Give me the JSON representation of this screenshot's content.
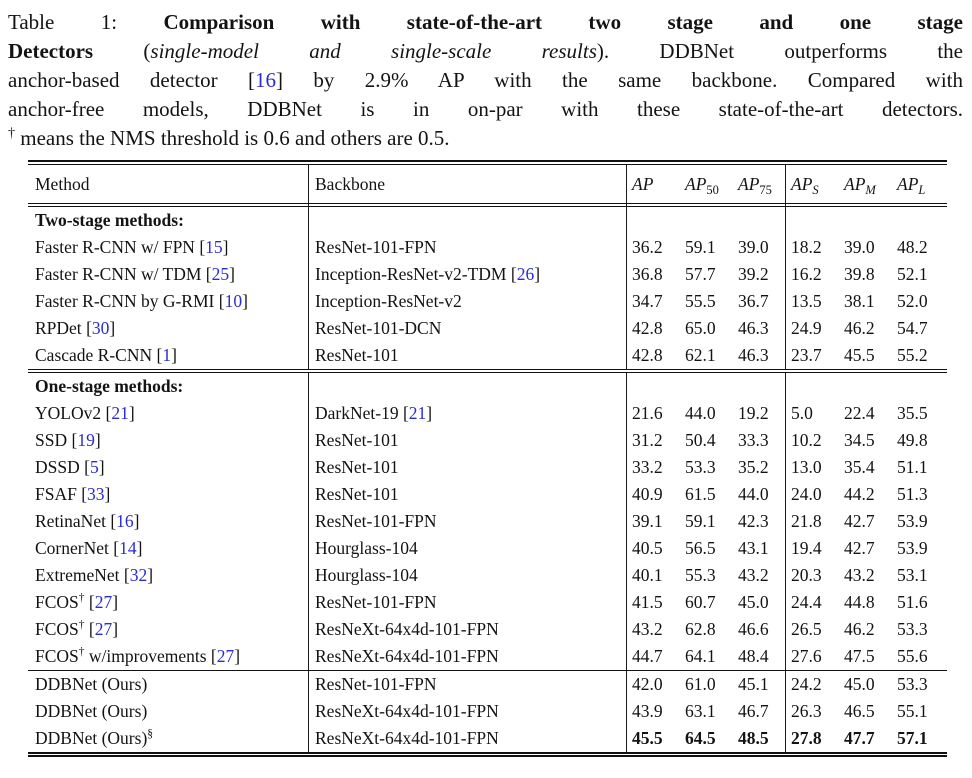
{
  "colors": {
    "citation": "#2b2bd4",
    "text": "#131313",
    "rule": "#111111"
  },
  "caption": {
    "lines": [
      {
        "justify": true,
        "segments": [
          {
            "text": "Table 1: ",
            "style": "roman"
          },
          {
            "text": "Comparison with state-of-the-art two stage and one stage",
            "style": "bold"
          }
        ]
      },
      {
        "justify": true,
        "segments": [
          {
            "text": "Detectors ",
            "style": "bold"
          },
          {
            "text": "(",
            "style": "roman"
          },
          {
            "text": "single-model and single-scale results",
            "style": "italic"
          },
          {
            "text": "). DDBNet outperforms the",
            "style": "roman"
          }
        ]
      },
      {
        "justify": true,
        "segments": [
          {
            "text": "anchor-based detector ",
            "style": "roman"
          },
          {
            "text": "[",
            "style": "roman"
          },
          {
            "text": "16",
            "style": "cite"
          },
          {
            "text": "]",
            "style": "roman"
          },
          {
            "text": " by 2.9% AP with the same backbone. Compared with",
            "style": "roman"
          }
        ]
      },
      {
        "justify": true,
        "segments": [
          {
            "text": "anchor-free models, DDBNet is in on-par with these state-of-the-art detectors.",
            "style": "roman"
          }
        ]
      },
      {
        "justify": false,
        "segments": [
          {
            "text": "†",
            "style": "sup"
          },
          {
            "text": " means the NMS threshold is 0.6 and others are 0.5.",
            "style": "roman"
          }
        ]
      }
    ]
  },
  "table": {
    "header": {
      "method": "Method",
      "backbone": "Backbone",
      "metrics": [
        {
          "base": "AP",
          "sub": "",
          "subStyle": ""
        },
        {
          "base": "AP",
          "sub": "50",
          "subStyle": "digit"
        },
        {
          "base": "AP",
          "sub": "75",
          "subStyle": "digit"
        },
        {
          "base": "AP",
          "sub": "S",
          "subStyle": "letter"
        },
        {
          "base": "AP",
          "sub": "M",
          "subStyle": "letter"
        },
        {
          "base": "AP",
          "sub": "L",
          "subStyle": "letter"
        }
      ]
    },
    "sections": [
      {
        "label": "Two-stage methods:",
        "divider_after": "double",
        "rows": [
          {
            "method": {
              "pre": "Faster R-CNN w/ FPN",
              "sup": "",
              "post": "",
              "cite": "15"
            },
            "backbone": {
              "name": "ResNet-101-FPN",
              "cite": ""
            },
            "values": [
              "36.2",
              "59.1",
              "39.0",
              "18.2",
              "39.0",
              "48.2"
            ],
            "bold": false
          },
          {
            "method": {
              "pre": "Faster R-CNN w/ TDM",
              "sup": "",
              "post": "",
              "cite": "25"
            },
            "backbone": {
              "name": "Inception-ResNet-v2-TDM",
              "cite": "26"
            },
            "values": [
              "36.8",
              "57.7",
              "39.2",
              "16.2",
              "39.8",
              "52.1"
            ],
            "bold": false
          },
          {
            "method": {
              "pre": "Faster R-CNN by G-RMI",
              "sup": "",
              "post": "",
              "cite": "10"
            },
            "backbone": {
              "name": "Inception-ResNet-v2",
              "cite": ""
            },
            "values": [
              "34.7",
              "55.5",
              "36.7",
              "13.5",
              "38.1",
              "52.0"
            ],
            "bold": false
          },
          {
            "method": {
              "pre": "RPDet",
              "sup": "",
              "post": "",
              "cite": "30"
            },
            "backbone": {
              "name": "ResNet-101-DCN",
              "cite": ""
            },
            "values": [
              "42.8",
              "65.0",
              "46.3",
              "24.9",
              "46.2",
              "54.7"
            ],
            "bold": false
          },
          {
            "method": {
              "pre": "Cascade R-CNN",
              "sup": "",
              "post": "",
              "cite": "1"
            },
            "backbone": {
              "name": "ResNet-101",
              "cite": ""
            },
            "values": [
              "42.8",
              "62.1",
              "46.3",
              "23.7",
              "45.5",
              "55.2"
            ],
            "bold": false
          }
        ]
      },
      {
        "label": "One-stage methods:",
        "divider_after": "single",
        "rows": [
          {
            "method": {
              "pre": "YOLOv2",
              "sup": "",
              "post": "",
              "cite": "21"
            },
            "backbone": {
              "name": "DarkNet-19",
              "cite": "21"
            },
            "values": [
              "21.6",
              "44.0",
              "19.2",
              "5.0",
              "22.4",
              "35.5"
            ],
            "bold": false
          },
          {
            "method": {
              "pre": "SSD",
              "sup": "",
              "post": "",
              "cite": "19"
            },
            "backbone": {
              "name": "ResNet-101",
              "cite": ""
            },
            "values": [
              "31.2",
              "50.4",
              "33.3",
              "10.2",
              "34.5",
              "49.8"
            ],
            "bold": false
          },
          {
            "method": {
              "pre": "DSSD",
              "sup": "",
              "post": "",
              "cite": "5"
            },
            "backbone": {
              "name": "ResNet-101",
              "cite": ""
            },
            "values": [
              "33.2",
              "53.3",
              "35.2",
              "13.0",
              "35.4",
              "51.1"
            ],
            "bold": false
          },
          {
            "method": {
              "pre": "FSAF",
              "sup": "",
              "post": "",
              "cite": "33"
            },
            "backbone": {
              "name": "ResNet-101",
              "cite": ""
            },
            "values": [
              "40.9",
              "61.5",
              "44.0",
              "24.0",
              "44.2",
              "51.3"
            ],
            "bold": false
          },
          {
            "method": {
              "pre": "RetinaNet",
              "sup": "",
              "post": "",
              "cite": "16"
            },
            "backbone": {
              "name": "ResNet-101-FPN",
              "cite": ""
            },
            "values": [
              "39.1",
              "59.1",
              "42.3",
              "21.8",
              "42.7",
              "53.9"
            ],
            "bold": false
          },
          {
            "method": {
              "pre": "CornerNet",
              "sup": "",
              "post": "",
              "cite": "14"
            },
            "backbone": {
              "name": "Hourglass-104",
              "cite": ""
            },
            "values": [
              "40.5",
              "56.5",
              "43.1",
              "19.4",
              "42.7",
              "53.9"
            ],
            "bold": false
          },
          {
            "method": {
              "pre": "ExtremeNet",
              "sup": "",
              "post": "",
              "cite": "32"
            },
            "backbone": {
              "name": "Hourglass-104",
              "cite": ""
            },
            "values": [
              "40.1",
              "55.3",
              "43.2",
              "20.3",
              "43.2",
              "53.1"
            ],
            "bold": false
          },
          {
            "method": {
              "pre": "FCOS",
              "sup": "†",
              "post": "",
              "cite": "27"
            },
            "backbone": {
              "name": "ResNet-101-FPN",
              "cite": ""
            },
            "values": [
              "41.5",
              "60.7",
              "45.0",
              "24.4",
              "44.8",
              "51.6"
            ],
            "bold": false
          },
          {
            "method": {
              "pre": "FCOS",
              "sup": "†",
              "post": "",
              "cite": "27"
            },
            "backbone": {
              "name": "ResNeXt-64x4d-101-FPN",
              "cite": ""
            },
            "values": [
              "43.2",
              "62.8",
              "46.6",
              "26.5",
              "46.2",
              "53.3"
            ],
            "bold": false
          },
          {
            "method": {
              "pre": "FCOS",
              "sup": "†",
              "post": " w/improvements",
              "cite": "27"
            },
            "backbone": {
              "name": "ResNeXt-64x4d-101-FPN",
              "cite": ""
            },
            "values": [
              "44.7",
              "64.1",
              "48.4",
              "27.6",
              "47.5",
              "55.6"
            ],
            "bold": false
          }
        ]
      },
      {
        "label": null,
        "divider_after": "bottom",
        "rows": [
          {
            "method": {
              "pre": "DDBNet (Ours)",
              "sup": "",
              "post": "",
              "cite": ""
            },
            "backbone": {
              "name": "ResNet-101-FPN",
              "cite": ""
            },
            "values": [
              "42.0",
              "61.0",
              "45.1",
              "24.2",
              "45.0",
              "53.3"
            ],
            "bold": false
          },
          {
            "method": {
              "pre": "DDBNet (Ours)",
              "sup": "",
              "post": "",
              "cite": ""
            },
            "backbone": {
              "name": "ResNeXt-64x4d-101-FPN",
              "cite": ""
            },
            "values": [
              "43.9",
              "63.1",
              "46.7",
              "26.3",
              "46.5",
              "55.1"
            ],
            "bold": false
          },
          {
            "method": {
              "pre": "DDBNet (Ours)",
              "sup": "§",
              "post": "",
              "cite": ""
            },
            "backbone": {
              "name": "ResNeXt-64x4d-101-FPN",
              "cite": ""
            },
            "values": [
              "45.5",
              "64.5",
              "48.5",
              "27.8",
              "47.7",
              "57.1"
            ],
            "bold": true
          }
        ]
      }
    ]
  }
}
